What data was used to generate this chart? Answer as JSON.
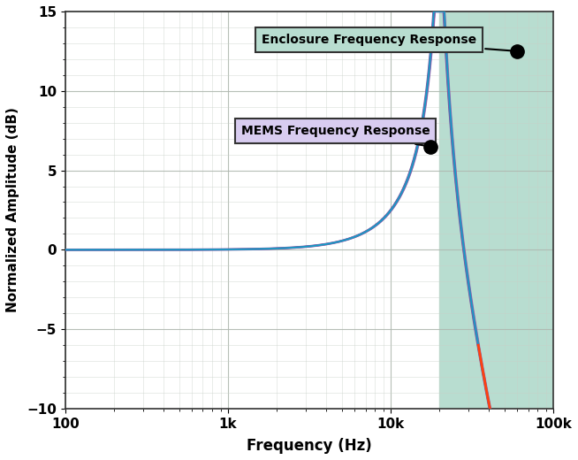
{
  "xlabel": "Frequency (Hz)",
  "ylabel": "Normalized Amplitude (dB)",
  "xlim_log": [
    100,
    100000
  ],
  "ylim": [
    -10,
    15
  ],
  "yticks": [
    -10,
    -5,
    0,
    5,
    10,
    15
  ],
  "xtick_labels": [
    "100",
    "1k",
    "10k",
    "100k"
  ],
  "xtick_vals": [
    100,
    1000,
    10000,
    100000
  ],
  "shaded_region_start": 20000,
  "shaded_region_color": "#b8ddd0",
  "bg_color": "#ffffff",
  "grid_major_color": "#b0b8b0",
  "grid_minor_color": "#c8d0c8",
  "line_color_main": "#7b5ea7",
  "line_color_cyan": "#00bcd4",
  "line_color_orange": "#ff4010",
  "enclosure_label": "Enclosure Frequency Response",
  "mems_label": "MEMS Frequency Response",
  "enclosure_box_color": "#b8ddd0",
  "mems_box_color": "#d8ccf0",
  "resonance_freq": 20000,
  "enclosure_point_freq": 60000,
  "enclosure_point_amp": 12.5,
  "mems_point_freq": 17500,
  "mems_point_amp": 6.5
}
